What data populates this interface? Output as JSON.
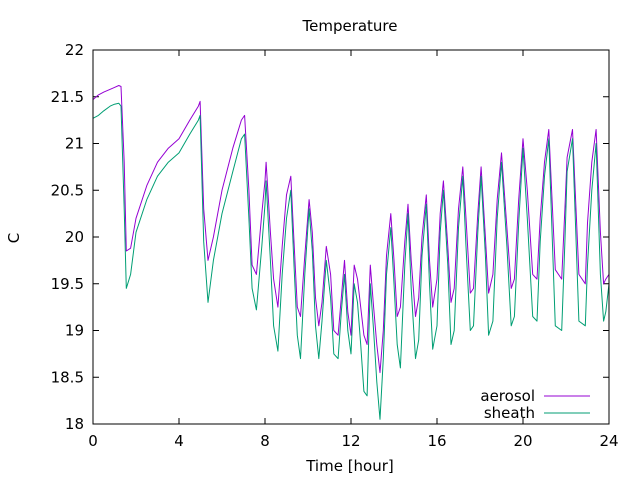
{
  "chart_data": {
    "type": "line",
    "title": "Temperature",
    "xlabel": "Time [hour]",
    "ylabel": "C",
    "xlim": [
      0,
      24
    ],
    "ylim": [
      18,
      22
    ],
    "xticks": [
      0,
      4,
      8,
      12,
      16,
      20,
      24
    ],
    "yticks": [
      18,
      18.5,
      19,
      19.5,
      20,
      20.5,
      21,
      21.5,
      22
    ],
    "xtick_labels": [
      "0",
      "4",
      "8",
      "12",
      "16",
      "20",
      "24"
    ],
    "ytick_labels": [
      "18",
      "18.5",
      "19",
      "19.5",
      "20",
      "20.5",
      "21",
      "21.5",
      "22"
    ],
    "grid": false,
    "legend_position": "bottom-right",
    "series": [
      {
        "name": "aerosol",
        "color": "#9400d3",
        "x": [
          0,
          0.25,
          0.5,
          0.8,
          1.0,
          1.2,
          1.3,
          1.45,
          1.55,
          1.75,
          2.0,
          2.5,
          3.0,
          3.5,
          4.0,
          4.5,
          4.9,
          4.98,
          5.15,
          5.35,
          5.6,
          6.0,
          6.5,
          6.9,
          7.05,
          7.25,
          7.4,
          7.6,
          7.85,
          8.0,
          8.05,
          8.25,
          8.4,
          8.6,
          8.8,
          9.0,
          9.2,
          9.35,
          9.5,
          9.65,
          9.85,
          10.05,
          10.2,
          10.35,
          10.5,
          10.65,
          10.85,
          11.05,
          11.2,
          11.4,
          11.55,
          11.7,
          11.85,
          12.0,
          12.15,
          12.3,
          12.45,
          12.6,
          12.75,
          12.9,
          13.05,
          13.2,
          13.35,
          13.5,
          13.65,
          13.85,
          14.0,
          14.15,
          14.3,
          14.5,
          14.65,
          14.8,
          15.0,
          15.15,
          15.3,
          15.5,
          15.65,
          15.8,
          16.0,
          16.15,
          16.3,
          16.5,
          16.65,
          16.8,
          17.0,
          17.2,
          17.35,
          17.55,
          17.7,
          17.9,
          18.05,
          18.25,
          18.4,
          18.6,
          18.8,
          19.0,
          19.25,
          19.45,
          19.6,
          19.8,
          20.0,
          20.2,
          20.45,
          20.65,
          20.8,
          21.0,
          21.2,
          21.5,
          21.8,
          21.95,
          22.05,
          22.3,
          22.6,
          22.9,
          23.0,
          23.2,
          23.4,
          23.6,
          23.75,
          23.85,
          24.0
        ],
        "y": [
          21.47,
          21.52,
          21.55,
          21.58,
          21.6,
          21.62,
          21.61,
          20.8,
          19.85,
          19.88,
          20.2,
          20.55,
          20.8,
          20.95,
          21.05,
          21.25,
          21.4,
          21.45,
          20.3,
          19.75,
          20.0,
          20.5,
          20.95,
          21.25,
          21.3,
          20.5,
          19.7,
          19.6,
          20.25,
          20.6,
          20.8,
          20.05,
          19.55,
          19.25,
          19.9,
          20.45,
          20.65,
          19.95,
          19.25,
          19.15,
          19.8,
          20.4,
          20.05,
          19.35,
          19.05,
          19.3,
          19.9,
          19.6,
          19.0,
          18.95,
          19.35,
          19.75,
          19.2,
          18.95,
          19.7,
          19.55,
          19.25,
          18.95,
          18.85,
          19.7,
          19.25,
          18.85,
          18.55,
          19.0,
          19.8,
          20.25,
          19.75,
          19.15,
          19.25,
          19.95,
          20.35,
          19.75,
          19.15,
          19.35,
          20.0,
          20.45,
          19.75,
          19.25,
          19.55,
          20.25,
          20.6,
          19.9,
          19.3,
          19.45,
          20.3,
          20.75,
          20.2,
          19.4,
          19.45,
          20.25,
          20.75,
          20.0,
          19.4,
          19.6,
          20.4,
          20.9,
          20.1,
          19.45,
          19.55,
          20.4,
          21.05,
          20.5,
          19.6,
          19.55,
          20.2,
          20.8,
          21.15,
          19.65,
          19.55,
          20.3,
          20.85,
          21.15,
          19.6,
          19.5,
          20.15,
          20.8,
          21.15,
          20.05,
          19.5,
          19.55,
          19.6
        ]
      },
      {
        "name": "sheath",
        "color": "#009e73",
        "x": [
          0,
          0.25,
          0.5,
          0.8,
          1.0,
          1.2,
          1.3,
          1.45,
          1.55,
          1.75,
          2.0,
          2.5,
          3.0,
          3.5,
          4.0,
          4.5,
          4.9,
          4.98,
          5.15,
          5.35,
          5.6,
          6.0,
          6.5,
          6.9,
          7.05,
          7.25,
          7.4,
          7.6,
          7.85,
          8.0,
          8.05,
          8.25,
          8.4,
          8.6,
          8.8,
          9.0,
          9.2,
          9.35,
          9.5,
          9.65,
          9.85,
          10.05,
          10.2,
          10.35,
          10.5,
          10.65,
          10.85,
          11.05,
          11.2,
          11.4,
          11.55,
          11.7,
          11.85,
          12.0,
          12.15,
          12.3,
          12.45,
          12.6,
          12.75,
          12.9,
          13.05,
          13.2,
          13.35,
          13.5,
          13.65,
          13.85,
          14.0,
          14.15,
          14.3,
          14.5,
          14.65,
          14.8,
          15.0,
          15.15,
          15.3,
          15.5,
          15.65,
          15.8,
          16.0,
          16.15,
          16.3,
          16.5,
          16.65,
          16.8,
          17.0,
          17.2,
          17.35,
          17.55,
          17.7,
          17.9,
          18.05,
          18.25,
          18.4,
          18.6,
          18.8,
          19.0,
          19.25,
          19.45,
          19.6,
          19.8,
          20.0,
          20.2,
          20.45,
          20.65,
          20.8,
          21.0,
          21.2,
          21.5,
          21.8,
          21.95,
          22.05,
          22.3,
          22.6,
          22.9,
          23.0,
          23.2,
          23.4,
          23.6,
          23.75,
          23.85,
          24.0
        ],
        "y": [
          21.27,
          21.3,
          21.35,
          21.4,
          21.42,
          21.43,
          21.4,
          20.3,
          19.45,
          19.6,
          20.05,
          20.4,
          20.65,
          20.8,
          20.9,
          21.1,
          21.25,
          21.3,
          19.95,
          19.3,
          19.75,
          20.25,
          20.7,
          21.05,
          21.1,
          20.2,
          19.45,
          19.22,
          19.9,
          20.35,
          20.6,
          19.75,
          19.05,
          18.78,
          19.6,
          20.2,
          20.5,
          19.7,
          18.95,
          18.7,
          19.6,
          20.3,
          19.85,
          19.05,
          18.7,
          19.1,
          19.75,
          19.35,
          18.75,
          18.7,
          19.2,
          19.6,
          19.0,
          18.75,
          19.5,
          19.3,
          18.85,
          18.35,
          18.3,
          19.5,
          19.0,
          18.45,
          18.05,
          18.7,
          19.6,
          20.1,
          19.5,
          18.85,
          18.6,
          19.7,
          20.25,
          19.45,
          18.7,
          18.9,
          19.8,
          20.35,
          19.5,
          18.8,
          19.05,
          20.05,
          20.5,
          19.7,
          18.85,
          19.0,
          20.1,
          20.65,
          19.9,
          19.0,
          19.05,
          20.05,
          20.65,
          19.8,
          18.95,
          19.1,
          20.2,
          20.8,
          19.9,
          19.05,
          19.15,
          20.15,
          20.95,
          20.2,
          19.15,
          19.1,
          19.95,
          20.65,
          21.05,
          19.05,
          19.0,
          19.95,
          20.7,
          21.05,
          19.1,
          19.05,
          19.7,
          20.5,
          21.0,
          19.6,
          19.1,
          19.2,
          19.5
        ]
      }
    ]
  }
}
